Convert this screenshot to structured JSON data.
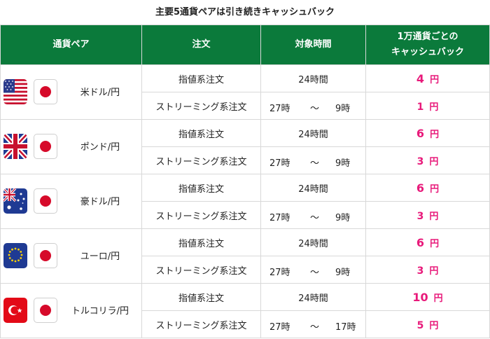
{
  "title": "主要5通貨ペアは引き続きキャッシュバック",
  "headers": {
    "pair": "通貨ペア",
    "order": "注文",
    "period": "対象時間",
    "cashback_line1": "1万通貨ごとの",
    "cashback_line2": "キャッシュバック"
  },
  "yen_unit": "円",
  "rows": [
    {
      "pair": "米ドル/円",
      "flag": "us-flag-icon",
      "limit": {
        "order": "指値系注文",
        "time": "24時間",
        "amount": "4"
      },
      "stream": {
        "order": "ストリーミング系注文",
        "from": "27時",
        "sep": "〜",
        "to": "9時",
        "amount": "1"
      }
    },
    {
      "pair": "ポンド/円",
      "flag": "uk-flag-icon",
      "limit": {
        "order": "指値系注文",
        "time": "24時間",
        "amount": "6"
      },
      "stream": {
        "order": "ストリーミング系注文",
        "from": "27時",
        "sep": "〜",
        "to": "9時",
        "amount": "3"
      }
    },
    {
      "pair": "豪ドル/円",
      "flag": "au-flag-icon",
      "limit": {
        "order": "指値系注文",
        "time": "24時間",
        "amount": "6"
      },
      "stream": {
        "order": "ストリーミング系注文",
        "from": "27時",
        "sep": "〜",
        "to": "9時",
        "amount": "3"
      }
    },
    {
      "pair": "ユーロ/円",
      "flag": "eu-flag-icon",
      "limit": {
        "order": "指値系注文",
        "time": "24時間",
        "amount": "6"
      },
      "stream": {
        "order": "ストリーミング系注文",
        "from": "27時",
        "sep": "〜",
        "to": "9時",
        "amount": "3"
      }
    },
    {
      "pair": "トルコリラ/円",
      "flag": "tr-flag-icon",
      "limit": {
        "order": "指値系注文",
        "time": "24時間",
        "amount": "10"
      },
      "stream": {
        "order": "ストリーミング系注文",
        "from": "27時",
        "sep": "〜",
        "to": "17時",
        "amount": "5"
      }
    }
  ],
  "colors": {
    "header_bg": "#0b7a3b",
    "amount": "#e8197a"
  }
}
